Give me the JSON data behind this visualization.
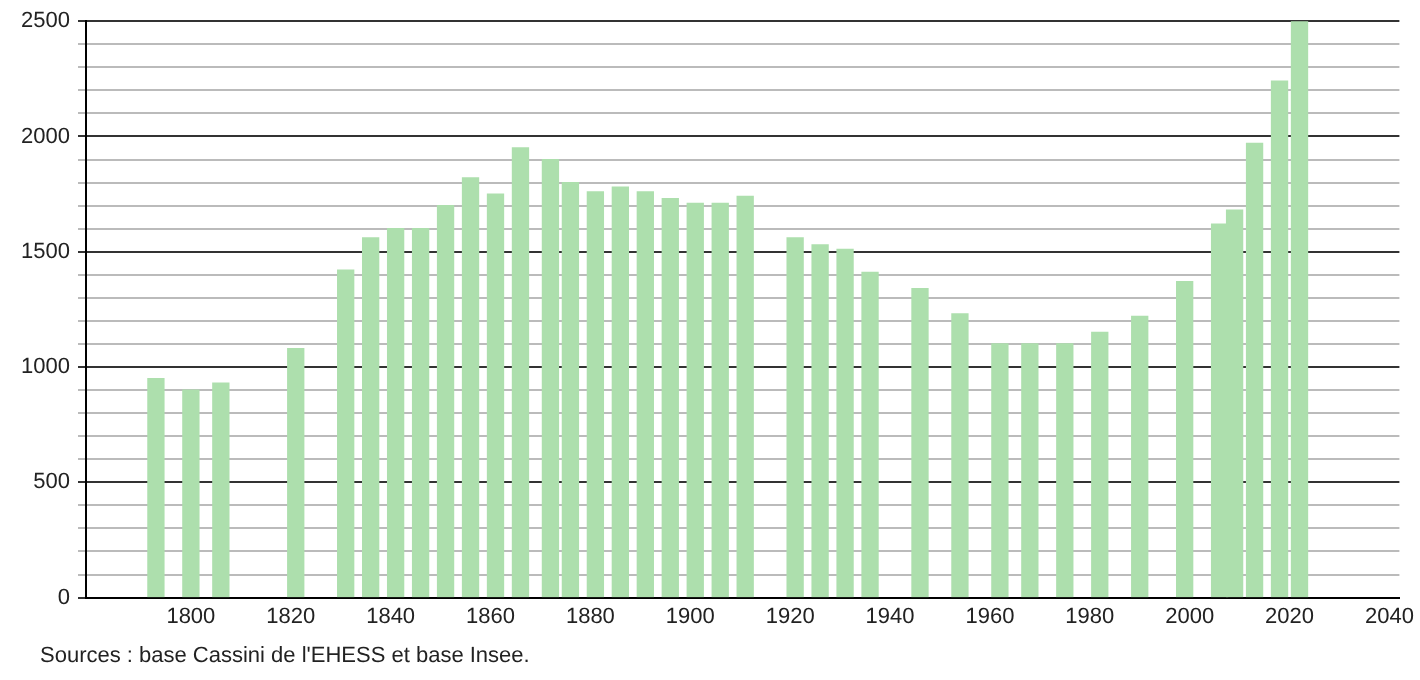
{
  "chart_data": {
    "type": "bar",
    "annotations": [
      "Sources : base Cassini de l'EHESS et base Insee."
    ],
    "x": [
      1793,
      1800,
      1806,
      1821,
      1831,
      1836,
      1841,
      1846,
      1851,
      1856,
      1861,
      1866,
      1872,
      1876,
      1881,
      1886,
      1891,
      1896,
      1901,
      1906,
      1911,
      1921,
      1926,
      1931,
      1936,
      1946,
      1954,
      1962,
      1968,
      1975,
      1982,
      1990,
      1999,
      2006,
      2009,
      2013,
      2018,
      2022
    ],
    "values": [
      950,
      900,
      930,
      1080,
      1420,
      1560,
      1600,
      1600,
      1700,
      1820,
      1750,
      1950,
      1900,
      1800,
      1760,
      1780,
      1760,
      1730,
      1710,
      1710,
      1740,
      1560,
      1530,
      1510,
      1410,
      1340,
      1230,
      1100,
      1100,
      1100,
      1150,
      1220,
      1370,
      1620,
      1680,
      1970,
      2240,
      2500
    ],
    "color": "#addfad",
    "xlim": [
      1779,
      2042
    ],
    "xticks": [
      1800,
      1820,
      1840,
      1860,
      1880,
      1900,
      1920,
      1940,
      1960,
      1980,
      2000,
      2020,
      2040
    ],
    "ylim": [
      0,
      2500
    ],
    "yticks": [
      0,
      {
        "value": 100,
        "label": null
      },
      {
        "value": 200,
        "label": null
      },
      {
        "value": 300,
        "label": null
      },
      {
        "value": 400,
        "label": null
      },
      500,
      {
        "value": 600,
        "label": null
      },
      {
        "value": 700,
        "label": null
      },
      {
        "value": 800,
        "label": null
      },
      {
        "value": 900,
        "label": null
      },
      1000,
      {
        "value": 1100,
        "label": null
      },
      {
        "value": 1200,
        "label": null
      },
      {
        "value": 1300,
        "label": null
      },
      {
        "value": 1400,
        "label": null
      },
      1500,
      {
        "value": 1600,
        "label": null
      },
      {
        "value": 1700,
        "label": null
      },
      {
        "value": 1800,
        "label": null
      },
      {
        "value": 1900,
        "label": null
      },
      2000,
      {
        "value": 2100,
        "label": null
      },
      {
        "value": 2200,
        "label": null
      },
      {
        "value": 2300,
        "label": null
      },
      {
        "value": 2400,
        "label": null
      },
      2500
    ],
    "grid": "y",
    "legend": false
  }
}
